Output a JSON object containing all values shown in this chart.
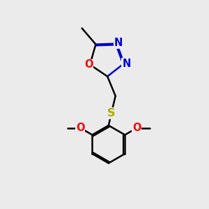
{
  "bg_color": "#ebebeb",
  "bond_color": "#000000",
  "N_color": "#0000cc",
  "O_color": "#ff0000",
  "S_color": "#aaaa00",
  "line_width": 1.8,
  "figsize": [
    3.0,
    3.0
  ],
  "dpi": 100,
  "xlim": [
    0.5,
    9.5
  ],
  "ylim": [
    0.5,
    9.5
  ]
}
